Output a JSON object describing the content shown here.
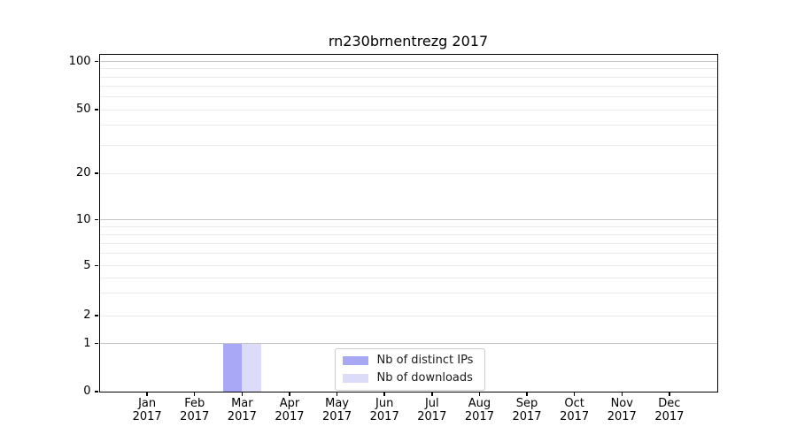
{
  "chart_data": {
    "type": "bar",
    "title": "rn230brnentrezg 2017",
    "categories": [
      {
        "month": "Jan",
        "year": "2017"
      },
      {
        "month": "Feb",
        "year": "2017"
      },
      {
        "month": "Mar",
        "year": "2017"
      },
      {
        "month": "Apr",
        "year": "2017"
      },
      {
        "month": "May",
        "year": "2017"
      },
      {
        "month": "Jun",
        "year": "2017"
      },
      {
        "month": "Jul",
        "year": "2017"
      },
      {
        "month": "Aug",
        "year": "2017"
      },
      {
        "month": "Sep",
        "year": "2017"
      },
      {
        "month": "Oct",
        "year": "2017"
      },
      {
        "month": "Nov",
        "year": "2017"
      },
      {
        "month": "Dec",
        "year": "2017"
      }
    ],
    "series": [
      {
        "name": "Nb of distinct IPs",
        "color": "#a8a8f6",
        "values": [
          0,
          0,
          1,
          0,
          0,
          0,
          0,
          0,
          0,
          0,
          0,
          0
        ]
      },
      {
        "name": "Nb of downloads",
        "color": "#dcdcf9",
        "values": [
          0,
          0,
          1,
          0,
          0,
          0,
          0,
          0,
          0,
          0,
          0,
          0
        ]
      }
    ],
    "y_axis": {
      "scale": "symlog",
      "range": [
        0,
        100
      ],
      "tick_values": [
        0,
        1,
        2,
        5,
        10,
        20,
        50,
        100
      ],
      "tick_labels": [
        "0",
        "1",
        "2",
        "5",
        "10",
        "20",
        "50",
        "100"
      ],
      "grid_major_values": [
        1,
        10,
        100
      ],
      "grid_minor_values": [
        2,
        3,
        4,
        5,
        6,
        7,
        8,
        9,
        20,
        30,
        40,
        50,
        60,
        70,
        80,
        90
      ]
    },
    "legend": {
      "position": "lower center"
    },
    "colors": {
      "grid_major": "#c3c3c3",
      "grid_minor": "#ebebeb",
      "spine": "#000000",
      "background": "#ffffff"
    }
  }
}
